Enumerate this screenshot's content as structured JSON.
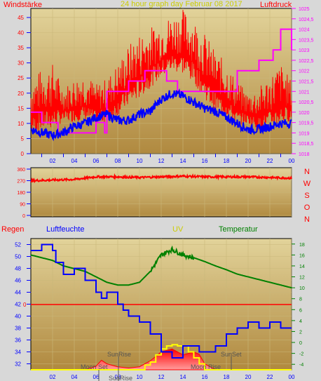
{
  "header": {
    "left_label": "Windstärke",
    "center_label": "24 hour graph day   Februar 08 2017",
    "right_label": "Luftdruck"
  },
  "direction_labels": [
    "N",
    "W",
    "S",
    "O",
    "N"
  ],
  "bottom_labels": {
    "rain": "Regen",
    "humidity": "Luftfeuchte",
    "uv": "UV",
    "temperature": "Temperatur"
  },
  "events": {
    "sunrise": "SunRise",
    "sunset": "SunSet",
    "moonset": "Moon Set",
    "moonrise": "Moon Rise"
  },
  "colors": {
    "frame_bg": "#d8d8d8",
    "plot_top": "#e2d39a",
    "plot_bottom": "#b0893f",
    "wind_gust": "#ff0000",
    "wind_avg": "#0000ff",
    "pressure": "#ff00ff",
    "direction": "#ff0000",
    "humidity": "#0000ff",
    "temperature": "#008000",
    "zero_line": "#ff0000",
    "uv": "#ffff00",
    "solar": "#ff0000",
    "label_red": "#ff0000",
    "label_blue": "#0000ff",
    "label_yellow": "#cccc00",
    "label_green": "#008000",
    "label_magenta": "#ff00ff"
  },
  "chart_data": [
    {
      "type": "line",
      "title": "24 hour graph day   Februar 08 2017",
      "x_ticks": [
        "02",
        "04",
        "06",
        "08",
        "10",
        "12",
        "14",
        "16",
        "18",
        "20",
        "22",
        "00"
      ],
      "y_left": {
        "label": "Windstärke",
        "ylim": [
          0,
          48
        ],
        "ticks": [
          "0",
          "5",
          "10",
          "15",
          "20",
          "25",
          "30",
          "35",
          "40",
          "45"
        ]
      },
      "y_right": {
        "label": "Luftdruck",
        "ylim": [
          1018,
          1025
        ],
        "ticks": [
          "1018",
          "1018,5",
          "1019",
          "1019,5",
          "1020",
          "1020,5",
          "1021",
          "1021,5",
          "1022",
          "1022,5",
          "1023",
          "1023,5",
          "1024",
          "1024,5",
          "1025"
        ]
      },
      "series": [
        {
          "key": "gust",
          "axis": "left",
          "x": [
            0,
            1,
            2,
            3,
            4,
            5,
            6,
            7,
            8,
            9,
            10,
            11,
            12,
            13,
            14,
            15,
            16,
            17,
            18,
            19,
            20,
            21,
            22,
            23,
            24
          ],
          "y": [
            12,
            14,
            15,
            14,
            15,
            16,
            14,
            15,
            18,
            22,
            25,
            28,
            31,
            33,
            33,
            30,
            25,
            20,
            18,
            14,
            13,
            12,
            14,
            16,
            15
          ],
          "y_max": [
            25,
            28,
            30,
            22,
            25,
            27,
            23,
            25,
            30,
            36,
            40,
            42,
            44,
            46,
            48,
            45,
            40,
            34,
            30,
            24,
            20,
            22,
            26,
            30,
            24
          ]
        },
        {
          "key": "wind",
          "axis": "left",
          "x": [
            0,
            1,
            2,
            3,
            4,
            5,
            6,
            7,
            8,
            9,
            10,
            11,
            12,
            13,
            14,
            15,
            16,
            17,
            18,
            19,
            20,
            21,
            22,
            23,
            24
          ],
          "y": [
            8,
            7,
            6,
            7,
            9,
            10,
            12,
            13,
            11,
            11,
            13,
            14,
            18,
            20,
            19,
            17,
            15,
            14,
            12,
            10,
            8,
            8,
            9,
            10,
            10
          ]
        },
        {
          "key": "pressure",
          "axis": "right",
          "step": true,
          "x": [
            0,
            1,
            2,
            2.5,
            4.5,
            6,
            6.8,
            7,
            8.5,
            9,
            10,
            10.5,
            12,
            12.5,
            13.5,
            14.5,
            17,
            18,
            19,
            19.5,
            21,
            22,
            22.3,
            23,
            24
          ],
          "y": [
            1020,
            1019.5,
            1019.5,
            1019,
            1019,
            1019.5,
            1019,
            1021,
            1021,
            1021.5,
            1021.5,
            1022,
            1022,
            1021.5,
            1021,
            1021,
            1021,
            1021,
            1022,
            1022,
            1022.5,
            1022.5,
            1023,
            1024,
            1023
          ]
        }
      ]
    },
    {
      "type": "line",
      "title": "",
      "x_ticks": [
        "02",
        "04",
        "06",
        "08",
        "10",
        "12",
        "14",
        "16",
        "18",
        "20",
        "22",
        "00"
      ],
      "y_left": {
        "label": "",
        "ylim": [
          0,
          360
        ],
        "ticks": [
          "0",
          "90",
          "180",
          "270",
          "360"
        ]
      },
      "series": [
        {
          "key": "direction",
          "axis": "left",
          "x": [
            0,
            2,
            4,
            6,
            8,
            10,
            12,
            14,
            16,
            18,
            20,
            22,
            24
          ],
          "y": [
            270,
            275,
            280,
            300,
            300,
            295,
            300,
            305,
            300,
            300,
            300,
            295,
            290
          ]
        }
      ]
    },
    {
      "type": "line",
      "title": "",
      "x_ticks": [
        "02",
        "04",
        "06",
        "08",
        "10",
        "12",
        "14",
        "16",
        "18",
        "20",
        "22",
        "00"
      ],
      "y_left": {
        "label": "Luftfeuchte",
        "ylim": [
          31,
          53
        ],
        "ticks": [
          "32",
          "34",
          "36",
          "38",
          "40",
          "42",
          "44",
          "46",
          "48",
          "50",
          "52"
        ]
      },
      "y_right": {
        "label": "Temperatur",
        "ylim": [
          -5,
          19
        ],
        "ticks": [
          "-4",
          "-2",
          "0",
          "2",
          "4",
          "6",
          "8",
          "10",
          "12",
          "14",
          "16",
          "18"
        ]
      },
      "series": [
        {
          "key": "humidity",
          "axis": "left",
          "step": true,
          "x": [
            0,
            1,
            2,
            2.3,
            3,
            4,
            5,
            6,
            6.5,
            7,
            8,
            8.5,
            9,
            10,
            11,
            12,
            13,
            14,
            15,
            15.5,
            17,
            18,
            19,
            20,
            21,
            22,
            23,
            24
          ],
          "y": [
            51,
            52,
            51,
            49,
            47,
            48,
            46,
            44,
            43,
            44,
            42,
            41,
            40,
            39,
            37,
            34,
            33,
            35,
            35,
            34,
            35,
            37,
            38,
            39,
            38,
            39,
            38,
            38
          ]
        },
        {
          "key": "temperature",
          "axis": "right",
          "x": [
            0,
            1,
            2,
            3,
            4,
            5,
            6,
            7,
            8,
            9,
            10,
            11,
            12,
            13,
            14,
            15,
            16,
            17,
            18,
            19,
            20,
            21,
            22,
            23,
            24
          ],
          "y": [
            16,
            15.5,
            15,
            14,
            13.5,
            13,
            12,
            11,
            10.5,
            10.5,
            11,
            13,
            16,
            17,
            16,
            15.5,
            14.8,
            14,
            13.3,
            12.5,
            12,
            11.5,
            11,
            10.5,
            10
          ]
        },
        {
          "key": "uv",
          "axis": "left",
          "x": [
            0,
            10,
            10.5,
            11,
            11.5,
            12,
            12.5,
            13,
            13.5,
            14,
            14.5,
            15,
            15.5,
            16,
            24
          ],
          "y": [
            31,
            31,
            31.8,
            32.3,
            33.5,
            34.5,
            35,
            35.2,
            35,
            35,
            34,
            33,
            32,
            31,
            31
          ]
        },
        {
          "key": "solar",
          "axis": "left",
          "x": [
            0,
            5,
            6,
            6.5,
            7,
            8,
            9,
            10,
            11,
            12,
            13,
            14,
            15,
            15.5,
            16,
            17,
            24
          ],
          "y": [
            31,
            31,
            31.6,
            32.6,
            32,
            31.5,
            31.3,
            31.5,
            32.5,
            34,
            34.5,
            33.5,
            34,
            33.6,
            32,
            31,
            31
          ]
        }
      ]
    }
  ]
}
